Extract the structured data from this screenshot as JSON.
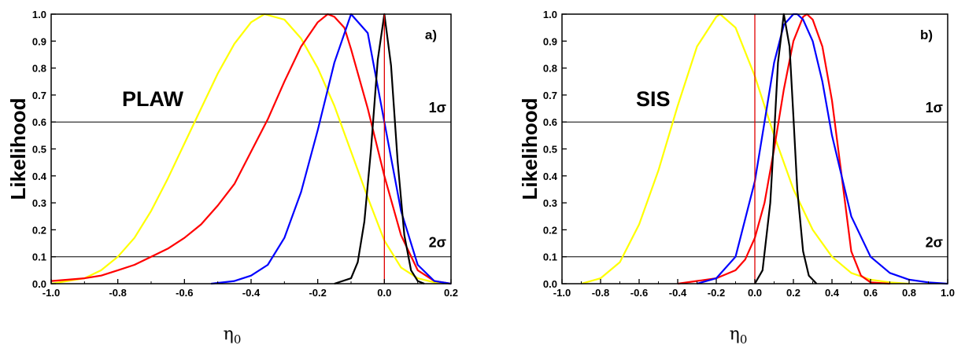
{
  "chart_data": [
    {
      "type": "line",
      "panel_label": "a)",
      "annotation": "PLAW",
      "xlabel": "η",
      "xlabel_subscript": "0",
      "ylabel": "Likelihood",
      "xlim": [
        -1.0,
        0.2
      ],
      "ylim": [
        0.0,
        1.0
      ],
      "xticks": [
        "-1.0",
        "-0.8",
        "-0.6",
        "-0.4",
        "-0.2",
        "0.0",
        "0.2"
      ],
      "xtick_values": [
        -1.0,
        -0.8,
        -0.6,
        -0.4,
        -0.2,
        0.0,
        0.2
      ],
      "yticks": [
        "0.0",
        "0.1",
        "0.2",
        "0.3",
        "0.4",
        "0.5",
        "0.6",
        "0.7",
        "0.8",
        "0.9",
        "1.0"
      ],
      "ytick_values": [
        0.0,
        0.1,
        0.2,
        0.3,
        0.4,
        0.5,
        0.6,
        0.7,
        0.8,
        0.9,
        1.0
      ],
      "hlines": [
        {
          "y": 0.6,
          "label": "1σ"
        },
        {
          "y": 0.1,
          "label": "2σ"
        }
      ],
      "vline": {
        "x": 0.0,
        "color": "#e00000"
      },
      "grid": false,
      "series": [
        {
          "color": "#ffff00",
          "x": [
            -1.0,
            -0.95,
            -0.9,
            -0.85,
            -0.8,
            -0.75,
            -0.7,
            -0.65,
            -0.6,
            -0.55,
            -0.5,
            -0.45,
            -0.4,
            -0.36,
            -0.3,
            -0.25,
            -0.2,
            -0.15,
            -0.1,
            -0.05,
            0.0,
            0.05,
            0.1,
            0.15,
            0.2
          ],
          "y": [
            0.0,
            0.01,
            0.02,
            0.05,
            0.1,
            0.17,
            0.27,
            0.39,
            0.52,
            0.65,
            0.78,
            0.89,
            0.97,
            1.0,
            0.98,
            0.91,
            0.8,
            0.66,
            0.49,
            0.32,
            0.16,
            0.06,
            0.02,
            0.005,
            0.0
          ]
        },
        {
          "color": "#ff0000",
          "x": [
            -1.0,
            -0.9,
            -0.85,
            -0.8,
            -0.75,
            -0.7,
            -0.65,
            -0.6,
            -0.55,
            -0.5,
            -0.45,
            -0.4,
            -0.35,
            -0.3,
            -0.25,
            -0.2,
            -0.17,
            -0.15,
            -0.12,
            -0.1,
            -0.05,
            0.0,
            0.05,
            0.1,
            0.15,
            0.2
          ],
          "y": [
            0.01,
            0.02,
            0.03,
            0.05,
            0.07,
            0.1,
            0.13,
            0.17,
            0.22,
            0.29,
            0.37,
            0.49,
            0.61,
            0.75,
            0.88,
            0.97,
            1.0,
            0.99,
            0.95,
            0.87,
            0.65,
            0.4,
            0.18,
            0.05,
            0.01,
            0.0
          ]
        },
        {
          "color": "#0000ff",
          "x": [
            -0.52,
            -0.45,
            -0.4,
            -0.35,
            -0.3,
            -0.25,
            -0.2,
            -0.15,
            -0.1,
            -0.05,
            0.0,
            0.05,
            0.1,
            0.15,
            0.2
          ],
          "y": [
            0.0,
            0.01,
            0.03,
            0.07,
            0.17,
            0.34,
            0.57,
            0.82,
            1.0,
            0.93,
            0.6,
            0.27,
            0.07,
            0.01,
            0.0
          ]
        },
        {
          "color": "#000000",
          "x": [
            -0.15,
            -0.1,
            -0.08,
            -0.06,
            -0.04,
            -0.02,
            0.0,
            0.02,
            0.04,
            0.06,
            0.08,
            0.1,
            0.12
          ],
          "y": [
            0.0,
            0.02,
            0.08,
            0.23,
            0.5,
            0.83,
            1.0,
            0.81,
            0.45,
            0.18,
            0.05,
            0.01,
            0.0
          ]
        }
      ]
    },
    {
      "type": "line",
      "panel_label": "b)",
      "annotation": "SIS",
      "xlabel": "η",
      "xlabel_subscript": "0",
      "ylabel": "Likelihood",
      "xlim": [
        -1.0,
        1.0
      ],
      "ylim": [
        0.0,
        1.0
      ],
      "xticks": [
        "-1.0",
        "-0.8",
        "-0.6",
        "-0.4",
        "-0.2",
        "0.0",
        "0.2",
        "0.4",
        "0.6",
        "0.8",
        "1.0"
      ],
      "xtick_values": [
        -1.0,
        -0.8,
        -0.6,
        -0.4,
        -0.2,
        0.0,
        0.2,
        0.4,
        0.6,
        0.8,
        1.0
      ],
      "yticks": [
        "0.0",
        "0.1",
        "0.2",
        "0.3",
        "0.4",
        "0.5",
        "0.6",
        "0.7",
        "0.8",
        "0.9",
        "1.0"
      ],
      "ytick_values": [
        0.0,
        0.1,
        0.2,
        0.3,
        0.4,
        0.5,
        0.6,
        0.7,
        0.8,
        0.9,
        1.0
      ],
      "hlines": [
        {
          "y": 0.6,
          "label": "1σ"
        },
        {
          "y": 0.1,
          "label": "2σ"
        }
      ],
      "vline": {
        "x": 0.0,
        "color": "#e00000"
      },
      "grid": false,
      "series": [
        {
          "color": "#ffff00",
          "x": [
            -0.9,
            -0.8,
            -0.7,
            -0.6,
            -0.5,
            -0.4,
            -0.3,
            -0.2,
            -0.18,
            -0.1,
            0.0,
            0.1,
            0.2,
            0.3,
            0.4,
            0.5,
            0.6,
            0.7,
            0.8
          ],
          "y": [
            0.0,
            0.02,
            0.08,
            0.22,
            0.42,
            0.66,
            0.88,
            0.99,
            1.0,
            0.95,
            0.77,
            0.55,
            0.35,
            0.2,
            0.1,
            0.04,
            0.015,
            0.005,
            0.0
          ]
        },
        {
          "color": "#ff0000",
          "x": [
            -0.4,
            -0.2,
            -0.1,
            -0.05,
            0.0,
            0.05,
            0.1,
            0.15,
            0.2,
            0.25,
            0.27,
            0.3,
            0.35,
            0.4,
            0.45,
            0.5,
            0.55,
            0.6,
            0.7
          ],
          "y": [
            0.0,
            0.02,
            0.05,
            0.09,
            0.17,
            0.3,
            0.5,
            0.72,
            0.9,
            0.99,
            1.0,
            0.98,
            0.88,
            0.68,
            0.4,
            0.12,
            0.03,
            0.005,
            0.0
          ]
        },
        {
          "color": "#0000ff",
          "x": [
            -0.3,
            -0.2,
            -0.1,
            0.0,
            0.05,
            0.1,
            0.15,
            0.2,
            0.22,
            0.25,
            0.3,
            0.35,
            0.4,
            0.5,
            0.6,
            0.7,
            0.8,
            0.9,
            1.0
          ],
          "y": [
            0.0,
            0.02,
            0.1,
            0.38,
            0.6,
            0.82,
            0.96,
            1.0,
            1.0,
            0.98,
            0.9,
            0.75,
            0.55,
            0.25,
            0.1,
            0.04,
            0.015,
            0.005,
            0.0
          ]
        },
        {
          "color": "#000000",
          "x": [
            0.0,
            0.04,
            0.08,
            0.1,
            0.12,
            0.15,
            0.18,
            0.2,
            0.22,
            0.25,
            0.28,
            0.32
          ],
          "y": [
            0.0,
            0.05,
            0.3,
            0.55,
            0.82,
            1.0,
            0.88,
            0.62,
            0.35,
            0.12,
            0.03,
            0.0
          ]
        }
      ]
    }
  ]
}
